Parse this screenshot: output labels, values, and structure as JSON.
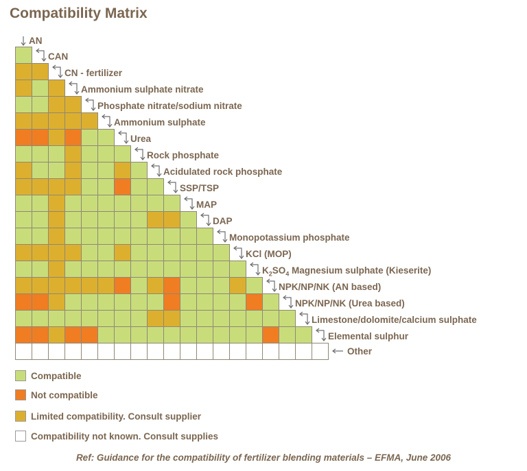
{
  "title": "Compatibility Matrix",
  "colors": {
    "C": "#c8dd7a",
    "N": "#f07d22",
    "L": "#dcb02e",
    "U": "#ffffff",
    "text": "#7b6651"
  },
  "materials": [
    {
      "label": "AN"
    },
    {
      "label": "CAN"
    },
    {
      "label": "CN - fertilizer"
    },
    {
      "label": "Ammonium  sulphate nitrate"
    },
    {
      "label": "Phosphate nitrate/sodium nitrate"
    },
    {
      "label": "Ammonium  sulphate"
    },
    {
      "label": "Urea"
    },
    {
      "label": "Rock phosphate"
    },
    {
      "label": "Acidulated rock phosphate"
    },
    {
      "label": "SSP/TSP"
    },
    {
      "label": "MAP"
    },
    {
      "label": "DAP"
    },
    {
      "label": "Monopotassium phosphate"
    },
    {
      "label": "KCl (MOP)"
    },
    {
      "label": "K2SO4 Magnesium sulphate (Kieserite)",
      "parts": [
        [
          "K",
          ""
        ],
        [
          "2",
          "sub"
        ],
        [
          "SO",
          ""
        ],
        [
          "4",
          "sub"
        ],
        [
          " Magnesium sulphate (Kieserite)",
          ""
        ]
      ]
    },
    {
      "label": "NPK/NP/NK (AN based)"
    },
    {
      "label": "NPK/NP/NK (Urea based)"
    },
    {
      "label": "Limestone/dolomite/calcium sulphate"
    },
    {
      "label": "Elemental sulphur"
    },
    {
      "label": "Other"
    }
  ],
  "matrix": [
    "C",
    "LL",
    "LCL",
    "CCLL",
    "LLLLL",
    "NNLNCC",
    "CCCLCCC",
    "LCCLCCLC",
    "LLLLCCNCC",
    "CCLCCCCCCC",
    "CCLCCCCCLLC",
    "CCLCCCCCCCCC",
    "LLLLCCLCCCCCC",
    "CCLCCCCCCCCCCC",
    "LLLLLLNCLNCCCLC",
    "NNLCCCCCCNCCCCNC",
    "CCCCCCCCLLCCCCCCC",
    "NNLNNCCCCCCCCCCNCC",
    "UUUUUUUUUUUUUUUUUUU"
  ],
  "legend": [
    {
      "code": "C",
      "label": "Compatible"
    },
    {
      "code": "N",
      "label": "Not compatible"
    },
    {
      "code": "L",
      "label": "Limited compatibility.  Consult supplier"
    },
    {
      "code": "U",
      "label": "Compatibility  not known.  Consult supplies"
    }
  ],
  "reference": "Ref: Guidance  for the compatibility  of fertilizer  blending  materials – EFMA, June 2006"
}
